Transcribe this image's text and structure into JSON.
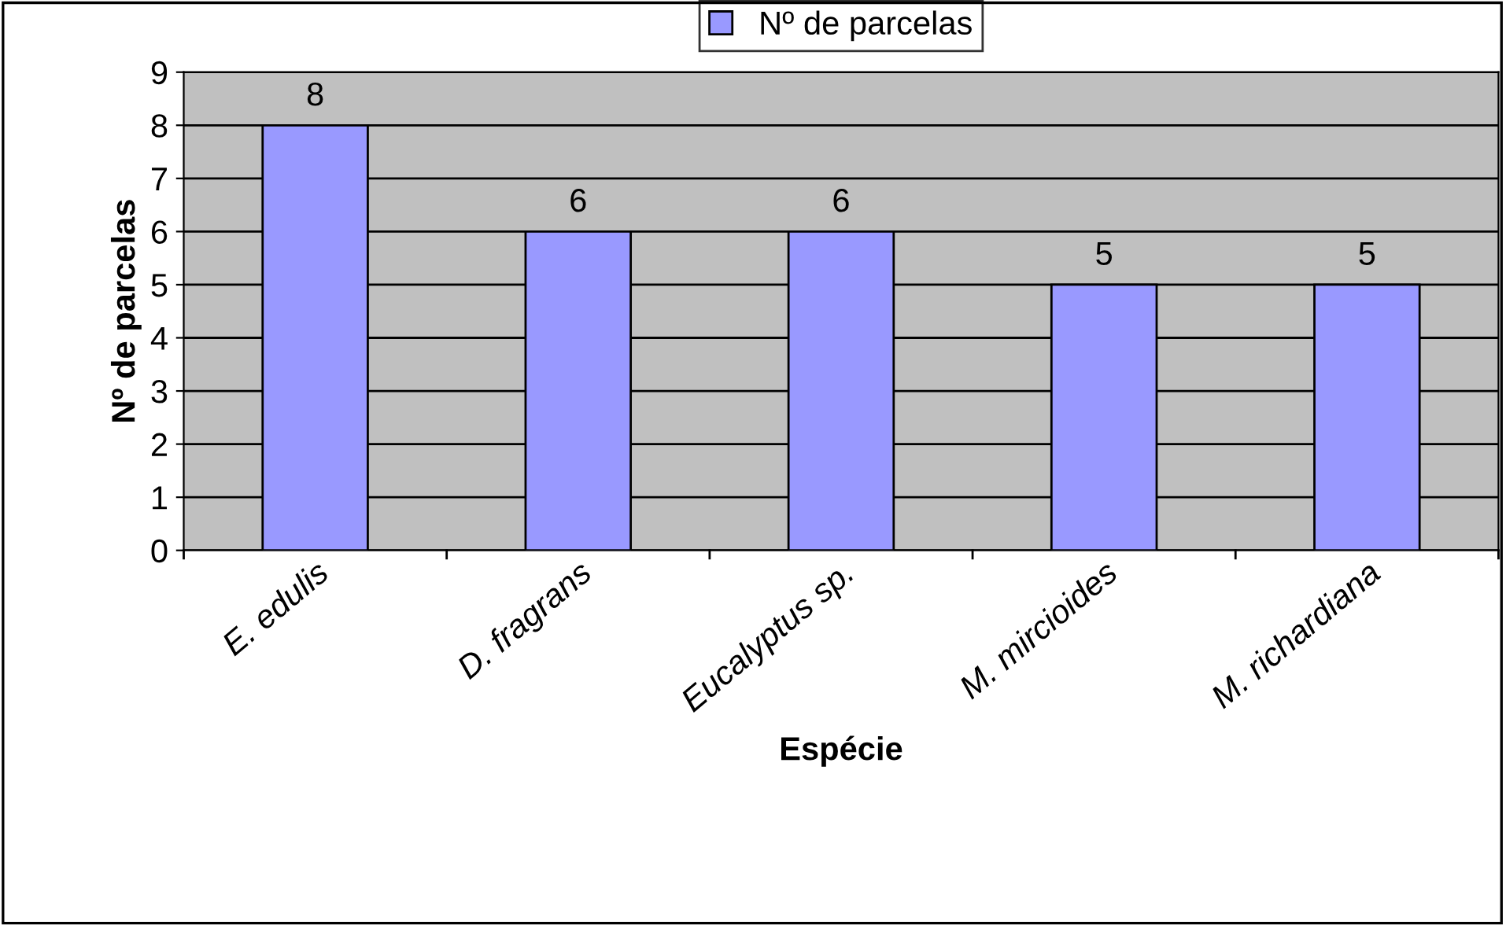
{
  "chart_data": {
    "type": "bar",
    "xlabel": "Espécie",
    "ylabel": "Nº de parcelas",
    "categories": [
      "E. edulis",
      "D. fragrans",
      "Eucalyptus sp.",
      "M. mircioides",
      "M. richardiana"
    ],
    "series": [
      {
        "name": "Nº de parcelas",
        "color": "#9999ff",
        "values": [
          8,
          6,
          6,
          5,
          5
        ]
      }
    ],
    "ylim": [
      0,
      9
    ],
    "yticks": [
      0,
      1,
      2,
      3,
      4,
      5,
      6,
      7,
      8,
      9
    ],
    "grid": "y",
    "legend": "top",
    "data_labels": true
  }
}
